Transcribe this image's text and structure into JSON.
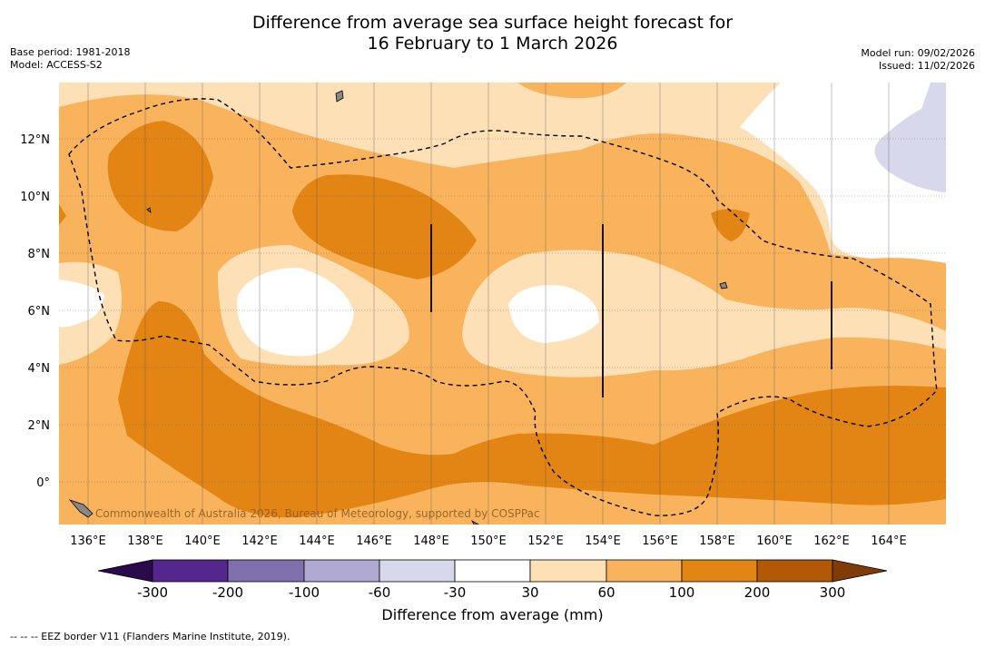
{
  "title_line1": "Difference from average sea surface height forecast for",
  "title_line2": "16 February to 1 March 2026",
  "base_period": "Base period: 1981-2018",
  "model": "Model: ACCESS-S2",
  "model_run": "Model run: 09/02/2026",
  "issued": "Issued: 11/02/2026",
  "map": {
    "lon_range": [
      135,
      166
    ],
    "lat_range": [
      -1.5,
      14
    ],
    "lon_ticks": [
      "136°E",
      "138°E",
      "140°E",
      "142°E",
      "144°E",
      "146°E",
      "148°E",
      "150°E",
      "152°E",
      "154°E",
      "156°E",
      "158°E",
      "160°E",
      "162°E",
      "164°E"
    ],
    "lat_ticks": [
      "12°N",
      "10°N",
      "8°N",
      "6°N",
      "4°N",
      "2°N",
      "0°"
    ],
    "attribution": "Commonwealth of Australia 2026, Bureau of Meteorology, supported by COSPPac"
  },
  "colorbar": {
    "label": "Difference from average (mm)",
    "ticks": [
      "-300",
      "-200",
      "-100",
      "-60",
      "-30",
      "30",
      "60",
      "100",
      "200",
      "300"
    ],
    "colors": {
      "below": "#2a0a4a",
      "c1": "#54278f",
      "c2": "#7f6fad",
      "c3": "#b0a9d2",
      "c4": "#d8d8ec",
      "c5": "#ffffff",
      "c6": "#fde0b5",
      "c7": "#f9b35d",
      "c8": "#e28514",
      "c9": "#b35806",
      "above": "#7f3b08"
    }
  },
  "footnote": "-- -- -- EEZ border V11 (Flanders Marine Institute, 2019)."
}
